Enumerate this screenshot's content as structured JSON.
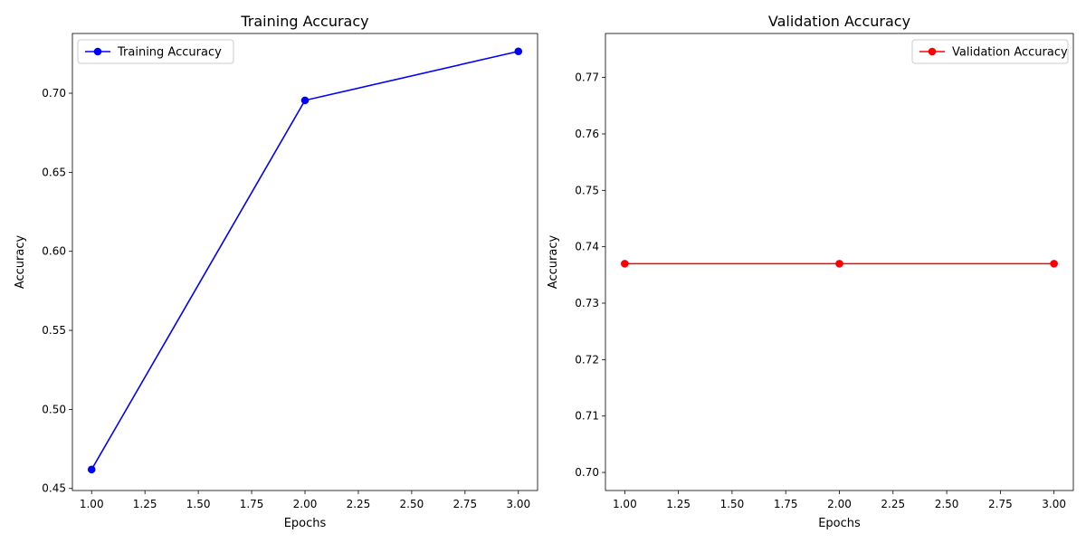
{
  "chart_data": [
    {
      "type": "line",
      "title": "Training Accuracy",
      "xlabel": "Epochs",
      "ylabel": "Accuracy",
      "x": [
        1,
        2,
        3
      ],
      "series": [
        {
          "name": "Training Accuracy",
          "values": [
            0.462,
            0.6955,
            0.7265
          ],
          "color": "#0000ff",
          "marker": "circle"
        }
      ],
      "xlim": [
        0.91,
        3.09
      ],
      "ylim": [
        0.4487,
        0.7378
      ],
      "xticks": [
        "1.00",
        "1.25",
        "1.50",
        "1.75",
        "2.00",
        "2.25",
        "2.50",
        "2.75",
        "3.00"
      ],
      "yticks": [
        "0.45",
        "0.50",
        "0.55",
        "0.60",
        "0.65",
        "0.70"
      ],
      "grid": false,
      "legend": "upper left"
    },
    {
      "type": "line",
      "title": "Validation Accuracy",
      "xlabel": "Epochs",
      "ylabel": "Accuracy",
      "x": [
        1,
        2,
        3
      ],
      "series": [
        {
          "name": "Validation Accuracy",
          "values": [
            0.737,
            0.737,
            0.737
          ],
          "color": "#ff0000",
          "marker": "circle"
        }
      ],
      "xlim": [
        0.91,
        3.09
      ],
      "ylim": [
        0.6968,
        0.7778
      ],
      "xticks": [
        "1.00",
        "1.25",
        "1.50",
        "1.75",
        "2.00",
        "2.25",
        "2.50",
        "2.75",
        "3.00"
      ],
      "yticks": [
        "0.70",
        "0.71",
        "0.72",
        "0.73",
        "0.74",
        "0.75",
        "0.76",
        "0.77"
      ],
      "grid": false,
      "legend": "upper right"
    }
  ]
}
